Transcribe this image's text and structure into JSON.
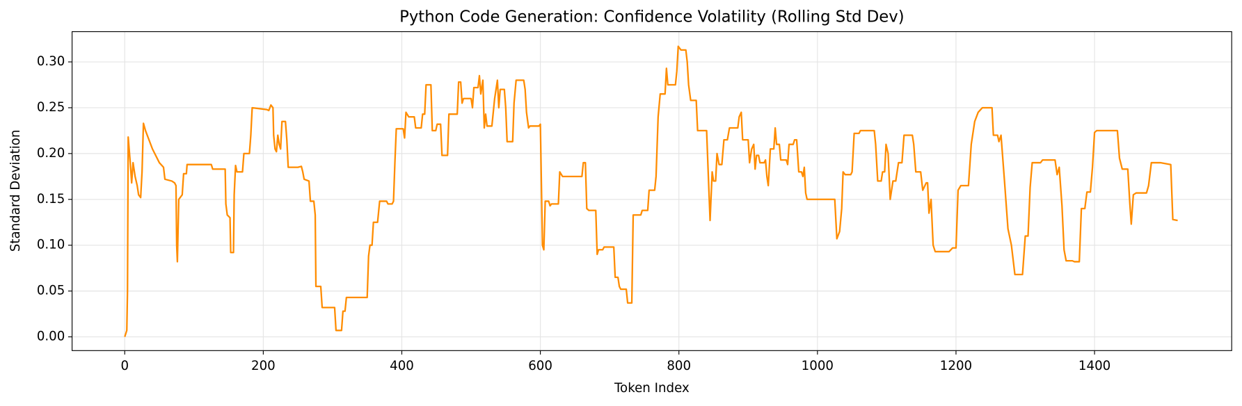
{
  "chart_data": {
    "type": "line",
    "title": "Python Code Generation: Confidence Volatility (Rolling Std Dev)",
    "x_label": "Token Index",
    "y_label": "Standard Deviation",
    "x": [
      0,
      3,
      4,
      5,
      8,
      10,
      12,
      15,
      18,
      20,
      23,
      25,
      27,
      30,
      40,
      50,
      56,
      58,
      68,
      72,
      74,
      75,
      76,
      78,
      83,
      85,
      89,
      90,
      125,
      127,
      145,
      146,
      148,
      152,
      153,
      157,
      158,
      160,
      162,
      170,
      172,
      180,
      182,
      184,
      205,
      208,
      211,
      214,
      215,
      217,
      219,
      221,
      223,
      225,
      227,
      232,
      234,
      236,
      250,
      255,
      257,
      259,
      266,
      268,
      273,
      275,
      276,
      283,
      285,
      303,
      305,
      313,
      315,
      318,
      320,
      350,
      352,
      354,
      357,
      359,
      365,
      368,
      378,
      380,
      386,
      388,
      390,
      392,
      402,
      404,
      406,
      410,
      418,
      420,
      428,
      430,
      433,
      435,
      442,
      444,
      449,
      451,
      456,
      458,
      466,
      468,
      480,
      482,
      485,
      487,
      489,
      500,
      502,
      504,
      510,
      512,
      514,
      517,
      519,
      521,
      523,
      530,
      534,
      538,
      540,
      542,
      548,
      550,
      552,
      560,
      562,
      565,
      576,
      578,
      580,
      583,
      585,
      598,
      600,
      603,
      605,
      607,
      612,
      614,
      616,
      626,
      628,
      632,
      660,
      662,
      665,
      667,
      670,
      680,
      682,
      684,
      690,
      692,
      706,
      708,
      712,
      714,
      716,
      724,
      726,
      732,
      734,
      745,
      747,
      755,
      757,
      765,
      767,
      770,
      773,
      780,
      782,
      784,
      795,
      797,
      799,
      803,
      810,
      812,
      814,
      817,
      825,
      827,
      840,
      842,
      845,
      848,
      850,
      853,
      855,
      858,
      862,
      865,
      870,
      873,
      885,
      887,
      890,
      892,
      900,
      902,
      905,
      908,
      910,
      912,
      915,
      917,
      923,
      925,
      927,
      929,
      932,
      937,
      939,
      941,
      945,
      947,
      955,
      957,
      959,
      965,
      967,
      970,
      973,
      977,
      979,
      981,
      983,
      985,
      1025,
      1028,
      1032,
      1035,
      1037,
      1040,
      1048,
      1050,
      1053,
      1060,
      1062,
      1082,
      1084,
      1087,
      1092,
      1094,
      1097,
      1099,
      1102,
      1105,
      1109,
      1113,
      1117,
      1122,
      1125,
      1137,
      1139,
      1142,
      1149,
      1152,
      1157,
      1159,
      1161,
      1164,
      1167,
      1170,
      1190,
      1195,
      1200,
      1203,
      1207,
      1218,
      1222,
      1227,
      1232,
      1238,
      1252,
      1254,
      1260,
      1262,
      1265,
      1270,
      1275,
      1280,
      1285,
      1296,
      1300,
      1304,
      1307,
      1310,
      1322,
      1325,
      1343,
      1346,
      1349,
      1353,
      1356,
      1359,
      1368,
      1371,
      1378,
      1381,
      1386,
      1389,
      1394,
      1397,
      1400,
      1403,
      1433,
      1436,
      1440,
      1448,
      1451,
      1453,
      1456,
      1460,
      1475,
      1478,
      1482,
      1495,
      1510,
      1513,
      1520
    ],
    "series": [
      {
        "color": "#ff8c00",
        "values": [
          0,
          0.007,
          0.05,
          0.218,
          0.19,
          0.168,
          0.19,
          0.175,
          0.165,
          0.155,
          0.152,
          0.18,
          0.233,
          0.225,
          0.205,
          0.19,
          0.185,
          0.172,
          0.17,
          0.168,
          0.165,
          0.1,
          0.082,
          0.15,
          0.155,
          0.178,
          0.178,
          0.188,
          0.188,
          0.183,
          0.183,
          0.145,
          0.133,
          0.13,
          0.092,
          0.092,
          0.155,
          0.187,
          0.18,
          0.18,
          0.2,
          0.2,
          0.22,
          0.25,
          0.248,
          0.247,
          0.253,
          0.25,
          0.22,
          0.205,
          0.202,
          0.22,
          0.21,
          0.205,
          0.235,
          0.235,
          0.215,
          0.185,
          0.185,
          0.186,
          0.18,
          0.172,
          0.17,
          0.148,
          0.148,
          0.133,
          0.055,
          0.055,
          0.032,
          0.032,
          0.007,
          0.007,
          0.028,
          0.028,
          0.043,
          0.043,
          0.088,
          0.1,
          0.1,
          0.125,
          0.125,
          0.148,
          0.148,
          0.145,
          0.145,
          0.148,
          0.19,
          0.227,
          0.227,
          0.217,
          0.245,
          0.24,
          0.24,
          0.228,
          0.228,
          0.243,
          0.243,
          0.275,
          0.275,
          0.225,
          0.225,
          0.232,
          0.232,
          0.198,
          0.198,
          0.243,
          0.243,
          0.278,
          0.278,
          0.255,
          0.26,
          0.26,
          0.25,
          0.272,
          0.272,
          0.285,
          0.265,
          0.28,
          0.228,
          0.243,
          0.23,
          0.23,
          0.26,
          0.28,
          0.25,
          0.27,
          0.27,
          0.25,
          0.213,
          0.213,
          0.255,
          0.28,
          0.28,
          0.27,
          0.245,
          0.228,
          0.23,
          0.23,
          0.232,
          0.1,
          0.095,
          0.148,
          0.148,
          0.143,
          0.145,
          0.145,
          0.18,
          0.175,
          0.175,
          0.19,
          0.19,
          0.14,
          0.138,
          0.138,
          0.09,
          0.095,
          0.095,
          0.098,
          0.098,
          0.065,
          0.065,
          0.055,
          0.052,
          0.052,
          0.037,
          0.037,
          0.133,
          0.133,
          0.138,
          0.138,
          0.16,
          0.16,
          0.175,
          0.24,
          0.265,
          0.265,
          0.293,
          0.275,
          0.275,
          0.29,
          0.317,
          0.313,
          0.313,
          0.3,
          0.275,
          0.258,
          0.258,
          0.225,
          0.225,
          0.185,
          0.127,
          0.18,
          0.17,
          0.17,
          0.2,
          0.188,
          0.188,
          0.215,
          0.215,
          0.228,
          0.228,
          0.24,
          0.245,
          0.215,
          0.215,
          0.19,
          0.205,
          0.21,
          0.183,
          0.198,
          0.198,
          0.19,
          0.19,
          0.193,
          0.175,
          0.165,
          0.205,
          0.205,
          0.228,
          0.21,
          0.21,
          0.193,
          0.193,
          0.188,
          0.21,
          0.21,
          0.215,
          0.215,
          0.18,
          0.18,
          0.175,
          0.185,
          0.157,
          0.15,
          0.15,
          0.107,
          0.115,
          0.14,
          0.18,
          0.177,
          0.177,
          0.18,
          0.222,
          0.222,
          0.225,
          0.225,
          0.21,
          0.17,
          0.17,
          0.18,
          0.18,
          0.21,
          0.2,
          0.15,
          0.17,
          0.17,
          0.19,
          0.19,
          0.22,
          0.22,
          0.21,
          0.18,
          0.18,
          0.16,
          0.168,
          0.168,
          0.135,
          0.15,
          0.1,
          0.093,
          0.093,
          0.097,
          0.097,
          0.16,
          0.165,
          0.165,
          0.21,
          0.235,
          0.245,
          0.25,
          0.25,
          0.22,
          0.22,
          0.213,
          0.22,
          0.17,
          0.118,
          0.1,
          0.068,
          0.068,
          0.11,
          0.11,
          0.163,
          0.19,
          0.19,
          0.193,
          0.193,
          0.177,
          0.185,
          0.143,
          0.095,
          0.083,
          0.083,
          0.082,
          0.082,
          0.14,
          0.14,
          0.158,
          0.158,
          0.185,
          0.223,
          0.225,
          0.225,
          0.195,
          0.183,
          0.183,
          0.145,
          0.123,
          0.155,
          0.157,
          0.157,
          0.165,
          0.19,
          0.19,
          0.188,
          0.128,
          0.127
        ]
      }
    ],
    "xlim": [
      -76,
      1598
    ],
    "ylim": [
      -0.015,
      0.333
    ],
    "xticks": [
      0,
      200,
      400,
      600,
      800,
      1000,
      1200,
      1400
    ],
    "yticks": [
      {
        "value": 0,
        "label": "0.00"
      },
      {
        "value": 0.05,
        "label": "0.05"
      },
      {
        "value": 0.1,
        "label": "0.10"
      },
      {
        "value": 0.15,
        "label": "0.15"
      },
      {
        "value": 0.2,
        "label": "0.20"
      },
      {
        "value": 0.25,
        "label": "0.25"
      },
      {
        "value": 0.3,
        "label": "0.30"
      }
    ],
    "grid": true
  }
}
